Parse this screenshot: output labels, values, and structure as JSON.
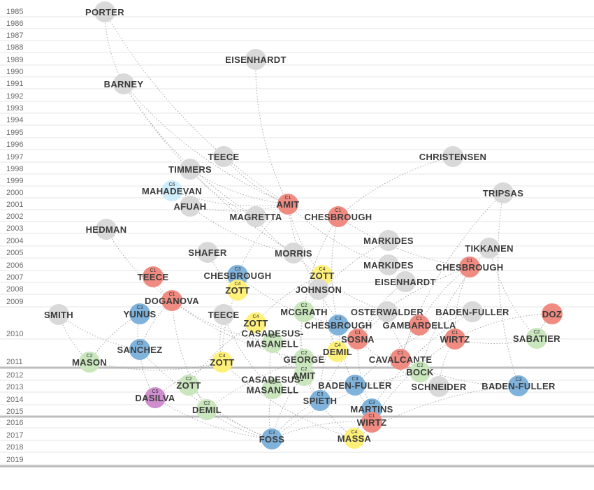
{
  "colors": {
    "gray": "#d9d9d9",
    "C1": "#f08b82",
    "C2": "#c9e6bd",
    "C3": "#7fb3dc",
    "C4": "#fff07a",
    "C5": "#cf8fcf",
    "C6": "#cfeefb"
  },
  "timeline": {
    "years": [
      "1985",
      "1986",
      "1987",
      "1988",
      "1989",
      "1990",
      "1991",
      "1992",
      "1993",
      "1994",
      "1995",
      "1996",
      "1997",
      "1998",
      "1999",
      "2000",
      "2001",
      "2002",
      "2003",
      "2004",
      "2005",
      "2006",
      "2007",
      "2008",
      "2009",
      "2010",
      "2011",
      "2012",
      "2013",
      "2014",
      "2015",
      "2016",
      "2017",
      "2018",
      "2019"
    ]
  },
  "nodes": [
    {
      "id": "porter",
      "label": "PORTER",
      "tag": "",
      "cat": "gray"
    },
    {
      "id": "eisenhardt89",
      "label": "EISENHARDT",
      "tag": "",
      "cat": "gray"
    },
    {
      "id": "barney",
      "label": "BARNEY",
      "tag": "",
      "cat": "gray"
    },
    {
      "id": "teece97",
      "label": "TEECE",
      "tag": "",
      "cat": "gray"
    },
    {
      "id": "christensen",
      "label": "CHRISTENSEN",
      "tag": "",
      "cat": "gray"
    },
    {
      "id": "timmers",
      "label": "TIMMERS",
      "tag": "",
      "cat": "gray"
    },
    {
      "id": "mahadevan",
      "label": "MAHADEVAN",
      "tag": "C6",
      "cat": "C6"
    },
    {
      "id": "tripsas",
      "label": "TRIPSAS",
      "tag": "",
      "cat": "gray"
    },
    {
      "id": "amit01",
      "label": "AMIT",
      "tag": "C1",
      "cat": "C1"
    },
    {
      "id": "afuah",
      "label": "AFUAH",
      "tag": "",
      "cat": "gray"
    },
    {
      "id": "magretta",
      "label": "MAGRETTA",
      "tag": "",
      "cat": "gray"
    },
    {
      "id": "chesbrough02",
      "label": "CHESBROUGH",
      "tag": "C1",
      "cat": "C1"
    },
    {
      "id": "hedman",
      "label": "HEDMAN",
      "tag": "",
      "cat": "gray"
    },
    {
      "id": "markides04",
      "label": "MARKIDES",
      "tag": "",
      "cat": "gray"
    },
    {
      "id": "shafer",
      "label": "SHAFER",
      "tag": "",
      "cat": "gray"
    },
    {
      "id": "morris",
      "label": "MORRIS",
      "tag": "",
      "cat": "gray"
    },
    {
      "id": "tikkanen",
      "label": "TIKKANEN",
      "tag": "",
      "cat": "gray"
    },
    {
      "id": "markides06",
      "label": "MARKIDES",
      "tag": "",
      "cat": "gray"
    },
    {
      "id": "chesbrough06",
      "label": "CHESBROUGH",
      "tag": "C1",
      "cat": "C1"
    },
    {
      "id": "teece07",
      "label": "TEECE",
      "tag": "C1",
      "cat": "C1"
    },
    {
      "id": "chesbrough07",
      "label": "CHESBROUGH",
      "tag": "C3",
      "cat": "C3"
    },
    {
      "id": "zott07",
      "label": "ZOTT",
      "tag": "C4",
      "cat": "C4"
    },
    {
      "id": "eisenhardt07",
      "label": "EISENHARDT",
      "tag": "",
      "cat": "gray"
    },
    {
      "id": "johnson",
      "label": "JOHNSON",
      "tag": "",
      "cat": "gray"
    },
    {
      "id": "zott08",
      "label": "ZOTT",
      "tag": "C4",
      "cat": "C4"
    },
    {
      "id": "doganova",
      "label": "DOGANOVA",
      "tag": "C1",
      "cat": "C1"
    },
    {
      "id": "smith",
      "label": "SMITH",
      "tag": "",
      "cat": "gray"
    },
    {
      "id": "yunus",
      "label": "YUNUS",
      "tag": "C3",
      "cat": "C3"
    },
    {
      "id": "teece10",
      "label": "TEECE",
      "tag": "",
      "cat": "gray"
    },
    {
      "id": "mcgrath",
      "label": "MCGRATH",
      "tag": "C2",
      "cat": "C2"
    },
    {
      "id": "osterwalder",
      "label": "OSTERWALDER",
      "tag": "",
      "cat": "gray"
    },
    {
      "id": "badenfuller10",
      "label": "BADEN-FULLER",
      "tag": "",
      "cat": "gray"
    },
    {
      "id": "doz",
      "label": "DOZ",
      "tag": "",
      "cat": "C1"
    },
    {
      "id": "zott10",
      "label": "ZOTT",
      "tag": "C4",
      "cat": "C4"
    },
    {
      "id": "chesbrough10",
      "label": "CHESBROUGH",
      "tag": "C3",
      "cat": "C3"
    },
    {
      "id": "gambardella",
      "label": "GAMBARDELLA",
      "tag": "C1",
      "cat": "C1"
    },
    {
      "id": "casadesus10",
      "label": "CASADESUS-\nMASANELL",
      "tag": "C2",
      "cat": "C2"
    },
    {
      "id": "sosna",
      "label": "SOSNA",
      "tag": "C1",
      "cat": "C1"
    },
    {
      "id": "wirtz10",
      "label": "WIRTZ",
      "tag": "C1",
      "cat": "C1"
    },
    {
      "id": "sabatier",
      "label": "SABATIER",
      "tag": "C2",
      "cat": "C2"
    },
    {
      "id": "sanchez",
      "label": "SANCHEZ",
      "tag": "C3",
      "cat": "C3"
    },
    {
      "id": "demil10",
      "label": "DEMIL",
      "tag": "C4",
      "cat": "C4"
    },
    {
      "id": "mason",
      "label": "MASON",
      "tag": "C2",
      "cat": "C2"
    },
    {
      "id": "zott11",
      "label": "ZOTT",
      "tag": "C4",
      "cat": "C4"
    },
    {
      "id": "george",
      "label": "GEORGE",
      "tag": "C2",
      "cat": "C2"
    },
    {
      "id": "cavalcante",
      "label": "CAVALCANTE",
      "tag": "C1",
      "cat": "C1"
    },
    {
      "id": "amit12",
      "label": "AMIT",
      "tag": "C2",
      "cat": "C2"
    },
    {
      "id": "bock",
      "label": "BOCK",
      "tag": "C2",
      "cat": "C2"
    },
    {
      "id": "zott13",
      "label": "ZOTT",
      "tag": "C2",
      "cat": "C2"
    },
    {
      "id": "casadesus13",
      "label": "CASADESUS-\nMASANELL",
      "tag": "C2",
      "cat": "C2"
    },
    {
      "id": "badenfuller13",
      "label": "BADEN-FULLER",
      "tag": "C3",
      "cat": "C3"
    },
    {
      "id": "schneider",
      "label": "SCHNEIDER",
      "tag": "",
      "cat": "gray"
    },
    {
      "id": "badenfuller13b",
      "label": "BADEN-FULLER",
      "tag": "C3",
      "cat": "C3"
    },
    {
      "id": "dasilva",
      "label": "DASILVA",
      "tag": "C5",
      "cat": "C5"
    },
    {
      "id": "spieth",
      "label": "SPIETH",
      "tag": "C3",
      "cat": "C3"
    },
    {
      "id": "demil15",
      "label": "DEMIL",
      "tag": "C2",
      "cat": "C2"
    },
    {
      "id": "martins",
      "label": "MARTINS",
      "tag": "C3",
      "cat": "C3"
    },
    {
      "id": "wirtz16",
      "label": "WIRTZ",
      "tag": "C1",
      "cat": "C1"
    },
    {
      "id": "foss",
      "label": "FOSS",
      "tag": "C3",
      "cat": "C3"
    },
    {
      "id": "massa",
      "label": "MASSA",
      "tag": "C4",
      "cat": "C4"
    }
  ],
  "edges": [
    [
      "porter",
      "amit01"
    ],
    [
      "porter",
      "barney"
    ],
    [
      "barney",
      "amit01"
    ],
    [
      "barney",
      "magretta"
    ],
    [
      "barney",
      "morris"
    ],
    [
      "eisenhardt89",
      "amit01"
    ],
    [
      "teece97",
      "amit01"
    ],
    [
      "timmers",
      "amit01"
    ],
    [
      "timmers",
      "magretta"
    ],
    [
      "christensen",
      "chesbrough02"
    ],
    [
      "mahadevan",
      "amit01"
    ],
    [
      "afuah",
      "amit01"
    ],
    [
      "afuah",
      "morris"
    ],
    [
      "amit01",
      "zott07"
    ],
    [
      "amit01",
      "chesbrough07"
    ],
    [
      "amit01",
      "johnson"
    ],
    [
      "amit01",
      "markides06"
    ],
    [
      "chesbrough02",
      "chesbrough06"
    ],
    [
      "chesbrough02",
      "chesbrough10"
    ],
    [
      "chesbrough02",
      "mcgrath"
    ],
    [
      "magretta",
      "morris"
    ],
    [
      "hedman",
      "doganova"
    ],
    [
      "shafer",
      "zott08"
    ],
    [
      "morris",
      "osterwalder"
    ],
    [
      "markides04",
      "mcgrath"
    ],
    [
      "tikkanen",
      "sabatier"
    ],
    [
      "tikkanen",
      "bock"
    ],
    [
      "tripsas",
      "badenfuller13b"
    ],
    [
      "tripsas",
      "cavalcante"
    ],
    [
      "chesbrough06",
      "gambardella"
    ],
    [
      "chesbrough06",
      "wirtz10"
    ],
    [
      "chesbrough06",
      "demil10"
    ],
    [
      "teece07",
      "doganova"
    ],
    [
      "zott07",
      "zott10"
    ],
    [
      "zott07",
      "demil10"
    ],
    [
      "chesbrough07",
      "chesbrough10"
    ],
    [
      "eisenhardt07",
      "sosna"
    ],
    [
      "johnson",
      "sosna"
    ],
    [
      "zott08",
      "zott11"
    ],
    [
      "doganova",
      "sanchez"
    ],
    [
      "doganova",
      "george"
    ],
    [
      "doganova",
      "casadesus10"
    ],
    [
      "doganova",
      "demil15"
    ],
    [
      "smith",
      "sanchez"
    ],
    [
      "smith",
      "mason"
    ],
    [
      "yunus",
      "sanchez"
    ],
    [
      "yunus",
      "mason"
    ],
    [
      "teece10",
      "zott11"
    ],
    [
      "teece10",
      "casadesus13"
    ],
    [
      "mcgrath",
      "george"
    ],
    [
      "mcgrath",
      "amit12"
    ],
    [
      "osterwalder",
      "spieth"
    ],
    [
      "osterwalder",
      "bock"
    ],
    [
      "badenfuller10",
      "badenfuller13"
    ],
    [
      "badenfuller10",
      "martins"
    ],
    [
      "doz",
      "sabatier"
    ],
    [
      "doz",
      "wirtz10"
    ],
    [
      "zott10",
      "zott13"
    ],
    [
      "zott10",
      "amit12"
    ],
    [
      "chesbrough10",
      "badenfuller13"
    ],
    [
      "chesbrough10",
      "spieth"
    ],
    [
      "gambardella",
      "cavalcante"
    ],
    [
      "casadesus10",
      "casadesus13"
    ],
    [
      "sosna",
      "martins"
    ],
    [
      "sosna",
      "schneider"
    ],
    [
      "wirtz10",
      "wirtz16"
    ],
    [
      "wirtz10",
      "sabatier"
    ],
    [
      "wirtz10",
      "schneider"
    ],
    [
      "sanchez",
      "foss"
    ],
    [
      "sanchez",
      "dasilva"
    ],
    [
      "demil10",
      "demil15"
    ],
    [
      "mason",
      "zott11"
    ],
    [
      "zott11",
      "dasilva"
    ],
    [
      "zott11",
      "massa"
    ],
    [
      "george",
      "spieth"
    ],
    [
      "cavalcante",
      "badenfuller13b"
    ],
    [
      "amit12",
      "foss"
    ],
    [
      "amit12",
      "massa"
    ],
    [
      "bock",
      "foss"
    ],
    [
      "zott13",
      "foss"
    ],
    [
      "casadesus13",
      "foss"
    ],
    [
      "badenfuller13",
      "martins"
    ],
    [
      "dasilva",
      "foss"
    ],
    [
      "spieth",
      "foss"
    ],
    [
      "demil15",
      "foss"
    ],
    [
      "martins",
      "massa"
    ],
    [
      "wirtz16",
      "foss"
    ],
    [
      "badenfuller13b",
      "massa"
    ]
  ]
}
